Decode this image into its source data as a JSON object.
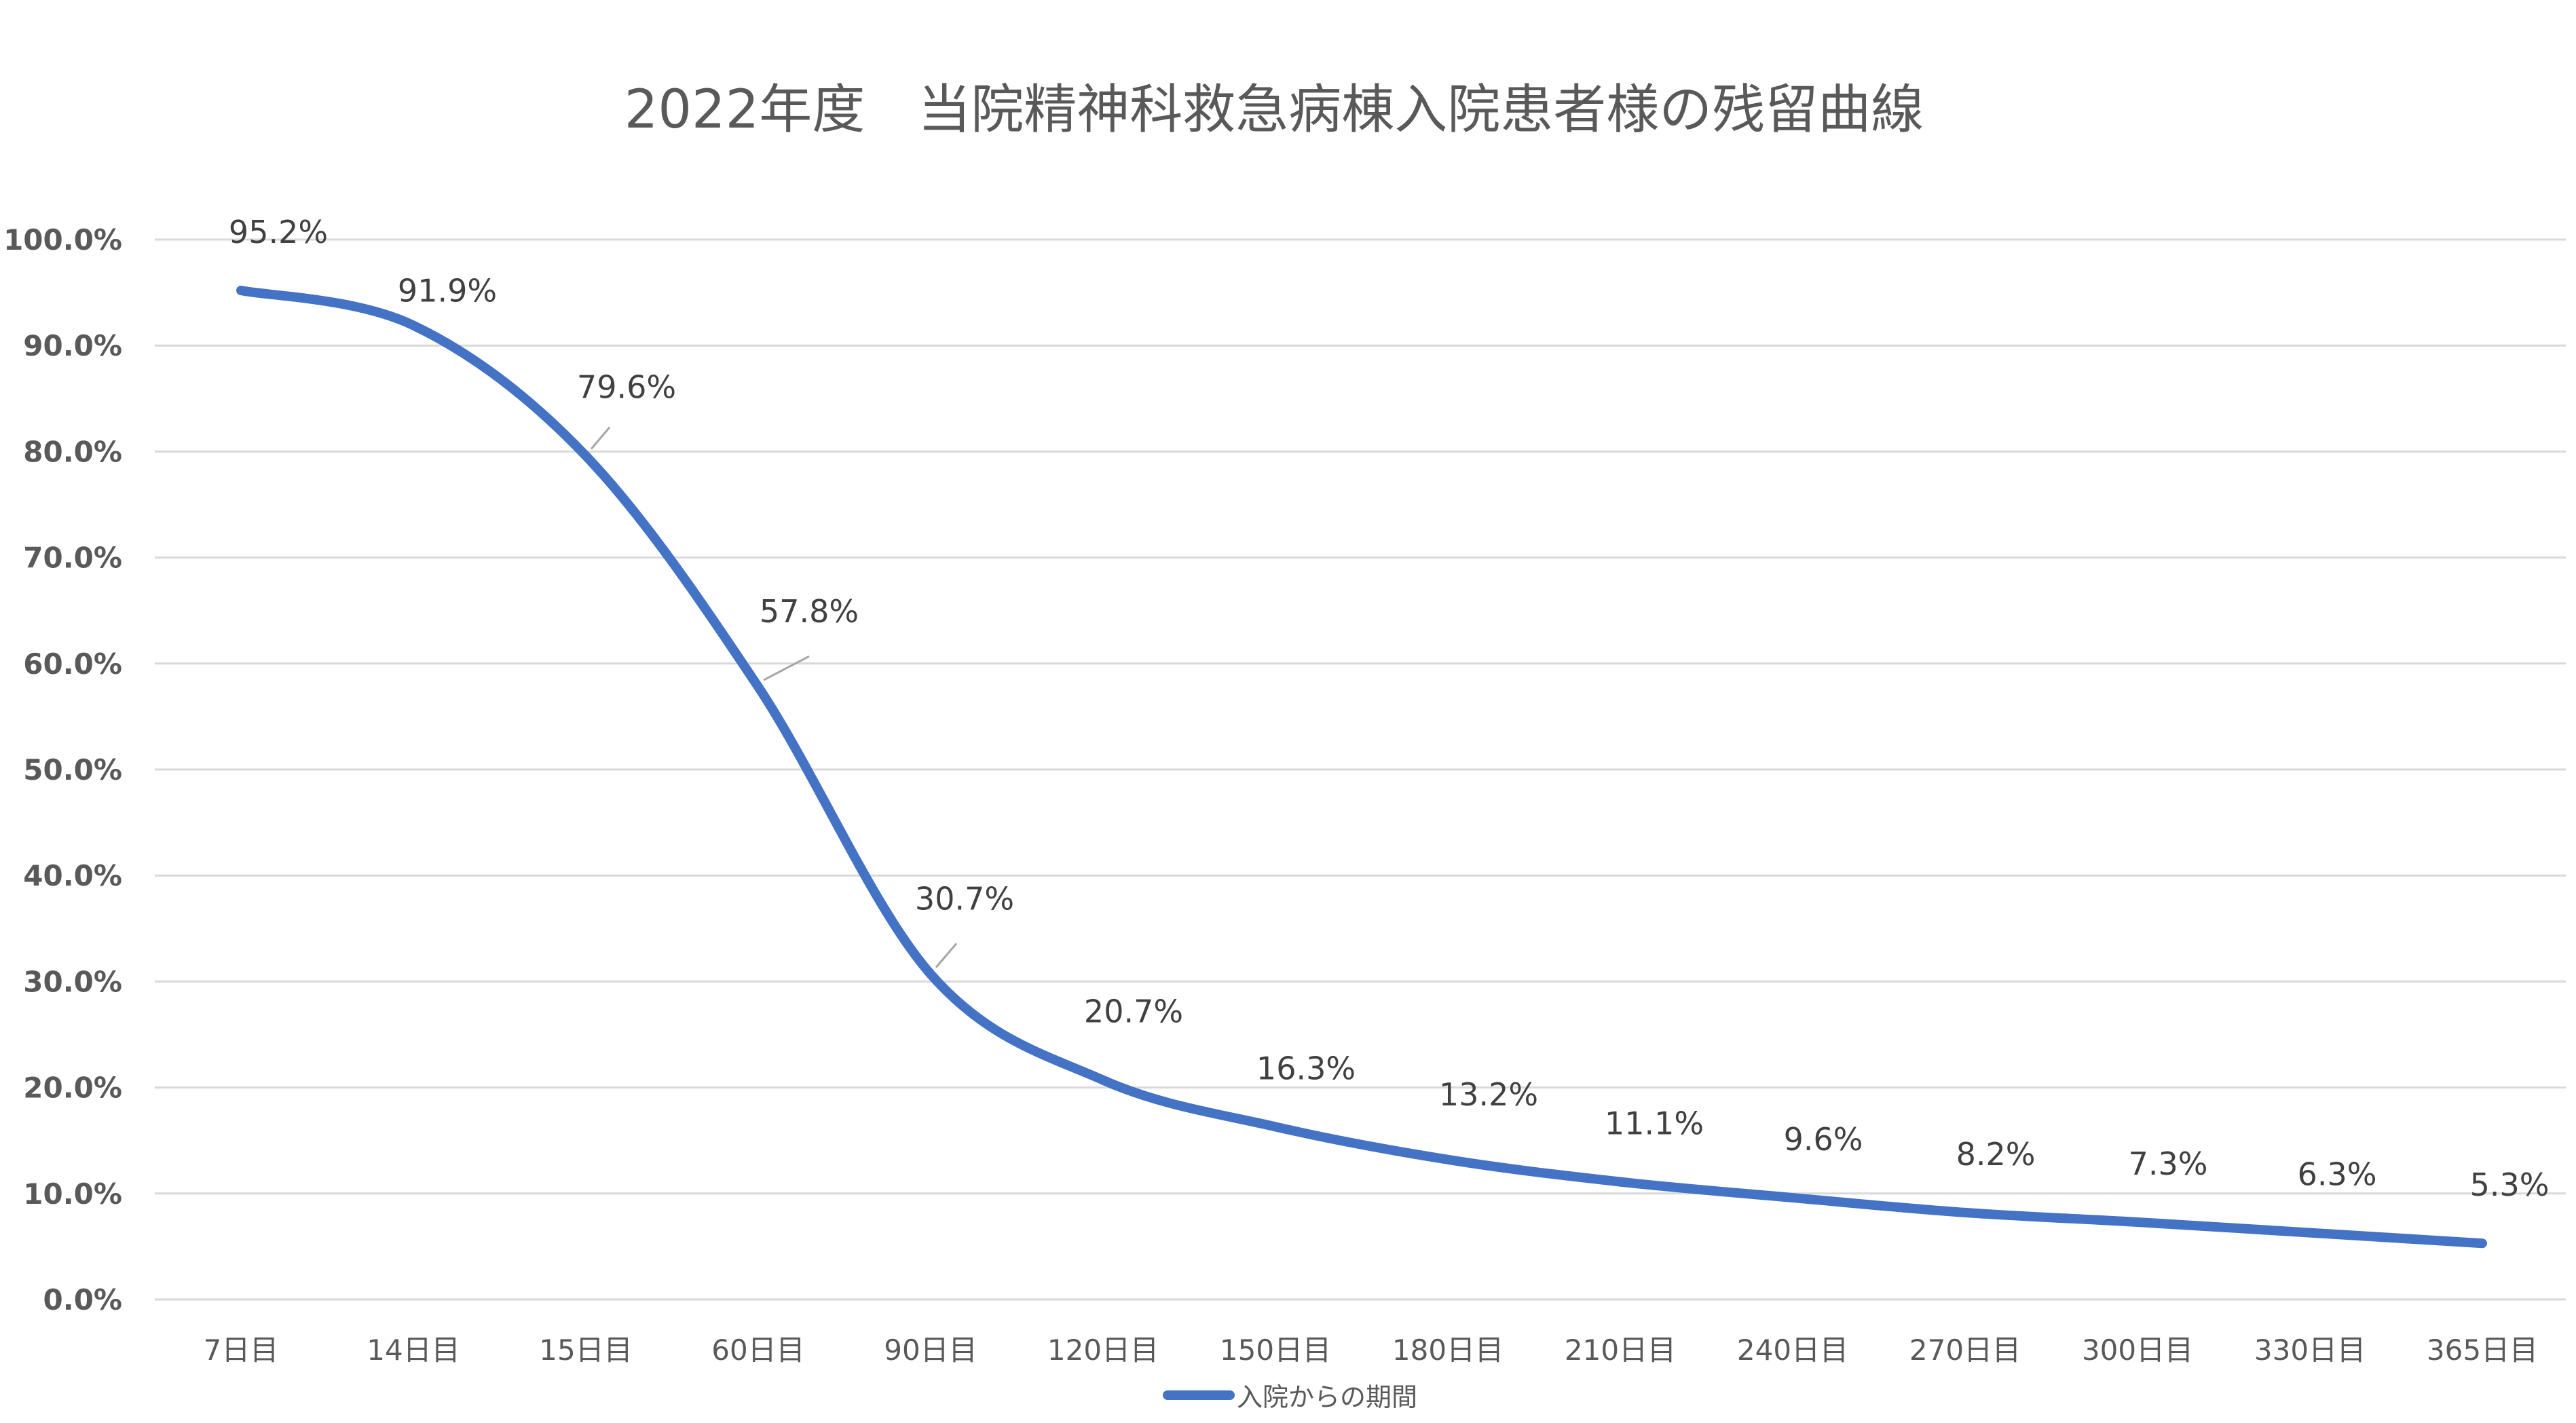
{
  "chart_data": {
    "type": "line",
    "title": "2022年度　当院精神科救急病棟入院患者様の残留曲線",
    "categories": [
      "7日目",
      "14日目",
      "15日目",
      "60日目",
      "90日目",
      "120日目",
      "150日目",
      "180日目",
      "210日目",
      "240日目",
      "270日目",
      "300日目",
      "330日目",
      "365日目"
    ],
    "series": [
      {
        "name": "入院からの期間",
        "values": [
          95.2,
          91.9,
          79.6,
          57.8,
          30.7,
          20.7,
          16.3,
          13.2,
          11.1,
          9.6,
          8.2,
          7.3,
          6.3,
          5.3
        ],
        "labels": [
          "95.2%",
          "91.9%",
          "79.6%",
          "57.8%",
          "30.7%",
          "20.7%",
          "16.3%",
          "13.2%",
          "11.1%",
          "9.6%",
          "8.2%",
          "7.3%",
          "6.3%",
          "5.3%"
        ],
        "color": "#4472C4"
      }
    ],
    "yticks": [
      "0.0%",
      "10.0%",
      "20.0%",
      "30.0%",
      "40.0%",
      "50.0%",
      "60.0%",
      "70.0%",
      "80.0%",
      "90.0%",
      "100.0%"
    ],
    "ylim": [
      0,
      100
    ],
    "grid": true,
    "legend_position": "bottom",
    "colors": {
      "line": "#4472C4",
      "grid": "#D9D9D9",
      "text": "#595959",
      "label": "#404040"
    }
  }
}
